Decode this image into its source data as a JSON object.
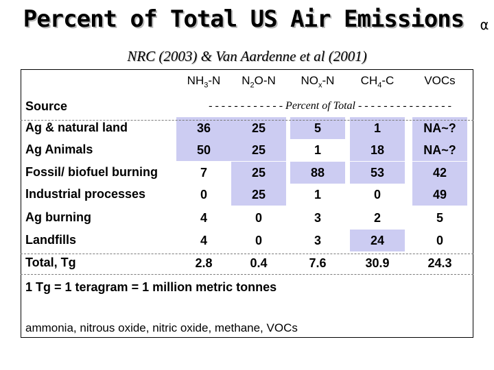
{
  "title": "Percent of Total US Air Emissions",
  "title_tail": "α",
  "subtitle": "NRC (2003) & Van Aardenne et al (2001)",
  "columns": [
    {
      "base": "NH",
      "sub": "3",
      "suffix": "-N"
    },
    {
      "base": "N",
      "sub": "2",
      "suffix": "O-N"
    },
    {
      "base": "NO",
      "sub": "x",
      "suffix": "-N"
    },
    {
      "base": "CH",
      "sub": "4",
      "suffix": "-C"
    },
    {
      "base": "VOCs",
      "sub": "",
      "suffix": ""
    }
  ],
  "source_label": "Source",
  "unit_line": "- - - - - - - - - - - - Percent of Total - - - - - - - - - - - - - - -",
  "rows": [
    {
      "label": "Ag & natural land",
      "cells": [
        {
          "v": "36",
          "hl": true
        },
        {
          "v": "25",
          "hl": true
        },
        {
          "v": "5",
          "hl": true
        },
        {
          "v": "1",
          "hl": true
        },
        {
          "v": "NA~?",
          "hl": true
        }
      ]
    },
    {
      "label": "Ag Animals",
      "cells": [
        {
          "v": "50",
          "hl": true
        },
        {
          "v": "25",
          "hl": true
        },
        {
          "v": "1",
          "hl": false
        },
        {
          "v": "18",
          "hl": true
        },
        {
          "v": "NA~?",
          "hl": true
        }
      ]
    },
    {
      "label": "Fossil/ biofuel burning",
      "cells": [
        {
          "v": "7",
          "hl": false
        },
        {
          "v": "25",
          "hl": true
        },
        {
          "v": "88",
          "hl": true
        },
        {
          "v": "53",
          "hl": true
        },
        {
          "v": "42",
          "hl": true
        }
      ]
    },
    {
      "label": "Industrial processes",
      "cells": [
        {
          "v": "0",
          "hl": false
        },
        {
          "v": "25",
          "hl": true
        },
        {
          "v": "1",
          "hl": false
        },
        {
          "v": "0",
          "hl": false
        },
        {
          "v": "49",
          "hl": true
        }
      ]
    },
    {
      "label": "Ag burning",
      "cells": [
        {
          "v": "4",
          "hl": false
        },
        {
          "v": "0",
          "hl": false
        },
        {
          "v": "3",
          "hl": false
        },
        {
          "v": "2",
          "hl": false
        },
        {
          "v": "5",
          "hl": false
        }
      ]
    },
    {
      "label": "Landfills",
      "cells": [
        {
          "v": "4",
          "hl": false
        },
        {
          "v": "0",
          "hl": false
        },
        {
          "v": "3",
          "hl": false
        },
        {
          "v": "24",
          "hl": true
        },
        {
          "v": "0",
          "hl": false
        }
      ]
    }
  ],
  "total": {
    "label": "Total, Tg",
    "cells": [
      "2.8",
      "0.4",
      "7.6",
      "30.9",
      "24.3"
    ]
  },
  "note": "1 Tg = 1 teragram = 1 million metric tonnes",
  "names": "ammonia, nitrous oxide, nitric oxide, methane, VOCs",
  "colors": {
    "highlight": "#ccccf2",
    "title_shadow": "#b8b8b8"
  }
}
